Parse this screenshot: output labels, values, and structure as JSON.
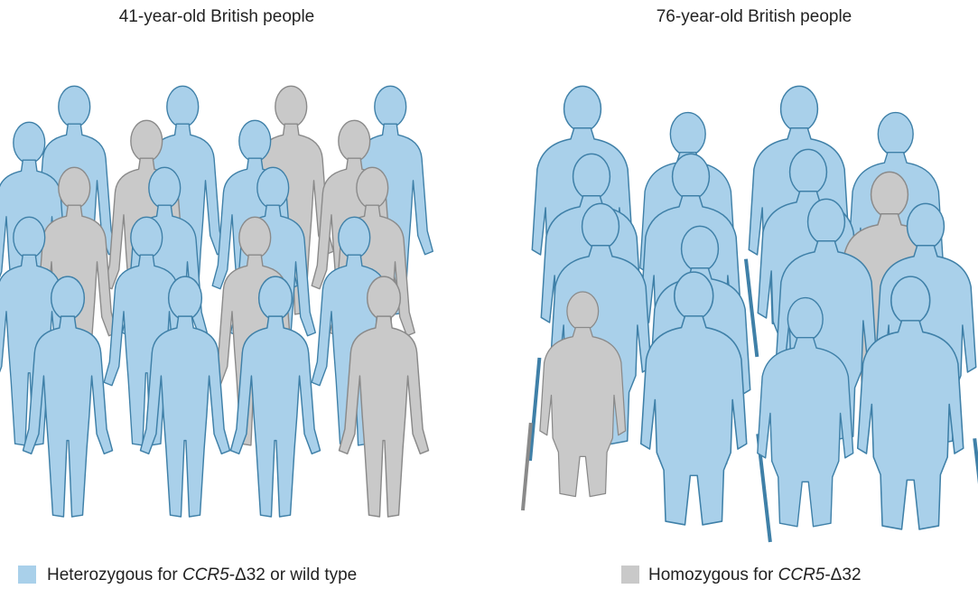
{
  "panels": [
    {
      "title": "41-year-old British people"
    },
    {
      "title": "76-year-old British people"
    }
  ],
  "legend": [
    {
      "text_before": "Heterozygous for ",
      "gene": "CCR5",
      "text_after": "-Δ32 or wild type",
      "color": "#a9d0ea"
    },
    {
      "text_before": "Homozygous for ",
      "gene": "CCR5",
      "text_after": "-Δ32",
      "color": "#c9c9c9"
    }
  ]
}
